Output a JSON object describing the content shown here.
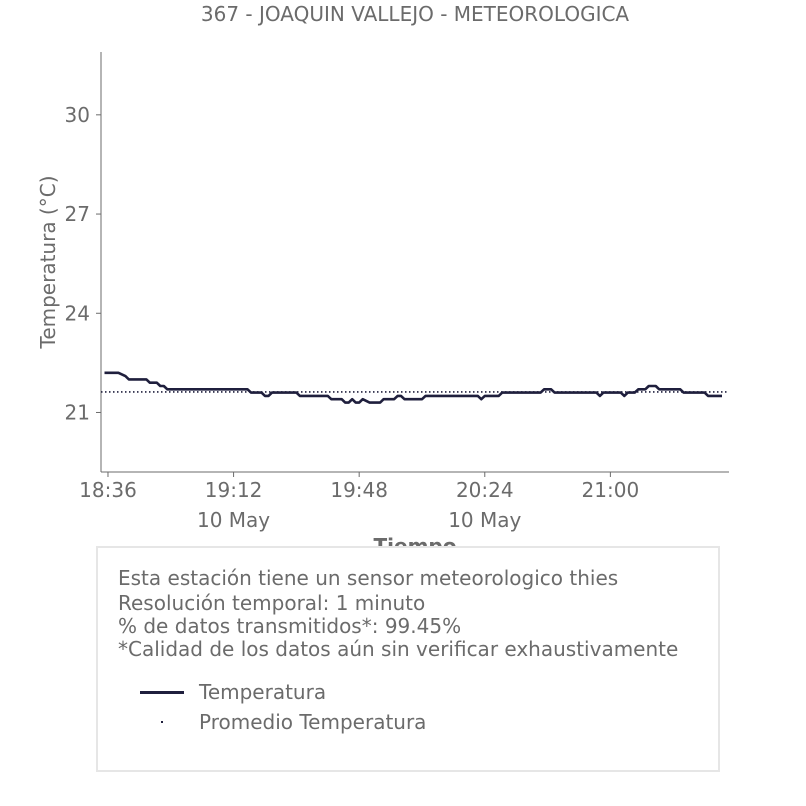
{
  "chart_data": {
    "type": "line",
    "title": "367 - JOAQUIN VALLEJO - METEOROLOGICA",
    "xlabel": "Tiempo",
    "ylabel": "Temperatura (°C)",
    "ylim": [
      19.2,
      31.9
    ],
    "xlim_minutes": [
      -2,
      178
    ],
    "y_ticks": [
      21,
      24,
      27,
      30
    ],
    "x_ticks": [
      {
        "min": 0,
        "label": "18:36",
        "sub": ""
      },
      {
        "min": 36,
        "label": "19:12",
        "sub": "10 May"
      },
      {
        "min": 72,
        "label": "19:48",
        "sub": ""
      },
      {
        "min": 108,
        "label": "20:24",
        "sub": "10 May"
      },
      {
        "min": 144,
        "label": "21:00",
        "sub": ""
      }
    ],
    "grid": false,
    "series": [
      {
        "name": "Temperatura",
        "color": "#1f1f3d",
        "x": [
          -1,
          3,
          5,
          6,
          9,
          10,
          11,
          12,
          14,
          15,
          16,
          17,
          18,
          19,
          20,
          22,
          23,
          24,
          25,
          40,
          41,
          44,
          45,
          46,
          47,
          48,
          54,
          55,
          63,
          64,
          67,
          68,
          69,
          70,
          71,
          72,
          73,
          75,
          76,
          78,
          79,
          82,
          83,
          84,
          85,
          86,
          90,
          91,
          105,
          106,
          107,
          108,
          112,
          113,
          124,
          125,
          127,
          128,
          140,
          141,
          142,
          143,
          147,
          148,
          149,
          150,
          151,
          152,
          154,
          155,
          157,
          158,
          164,
          165,
          171,
          172,
          173,
          176
        ],
        "values": [
          22.2,
          22.2,
          22.1,
          22.0,
          22.0,
          22.0,
          22.0,
          21.9,
          21.9,
          21.8,
          21.8,
          21.7,
          21.7,
          21.7,
          21.7,
          21.7,
          21.7,
          21.7,
          21.7,
          21.7,
          21.6,
          21.6,
          21.5,
          21.5,
          21.6,
          21.6,
          21.6,
          21.5,
          21.5,
          21.4,
          21.4,
          21.3,
          21.3,
          21.4,
          21.3,
          21.3,
          21.4,
          21.3,
          21.3,
          21.3,
          21.4,
          21.4,
          21.5,
          21.5,
          21.4,
          21.4,
          21.4,
          21.5,
          21.5,
          21.5,
          21.4,
          21.5,
          21.5,
          21.6,
          21.6,
          21.7,
          21.7,
          21.6,
          21.6,
          21.5,
          21.6,
          21.6,
          21.6,
          21.5,
          21.6,
          21.6,
          21.6,
          21.7,
          21.7,
          21.8,
          21.8,
          21.7,
          21.7,
          21.6,
          21.6,
          21.5,
          21.5,
          21.5
        ]
      },
      {
        "name": "Promedio Temperatura",
        "color": "#1f1f3d",
        "x": [
          -2,
          178
        ],
        "values": [
          21.62,
          21.62
        ]
      }
    ]
  },
  "info": {
    "line1": "Esta estación tiene un sensor meteorologico thies",
    "line2": "Resolución temporal: 1 minuto",
    "line3": "% de datos transmitidos*: 99.45%",
    "line4": "*Calidad de los datos aún sin verificar exhaustivamente"
  },
  "legend": {
    "series1": "Temperatura",
    "series2": "Promedio Temperatura"
  }
}
